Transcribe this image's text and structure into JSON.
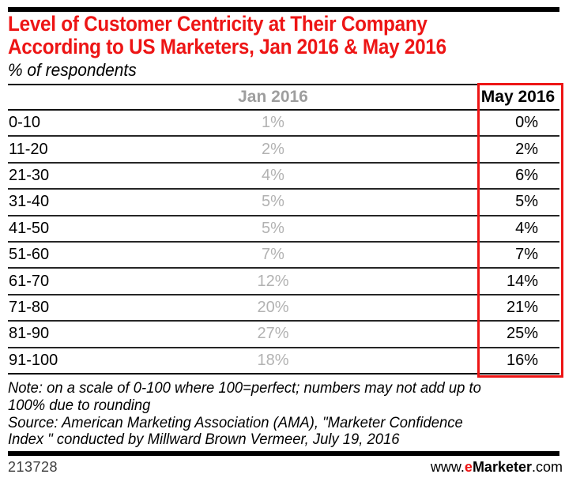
{
  "page": {
    "title_lines": [
      "Level of Customer Centricity at Their Company",
      "According to US Marketers, Jan 2016 & May 2016"
    ],
    "subtitle": "% of respondents"
  },
  "chart_data": {
    "type": "table",
    "title": "Level of Customer Centricity at Their Company According to US Marketers, Jan 2016 & May 2016",
    "subtitle": "% of respondents",
    "categories": [
      "0-10",
      "11-20",
      "21-30",
      "31-40",
      "41-50",
      "51-60",
      "61-70",
      "71-80",
      "81-90",
      "91-100"
    ],
    "series": [
      {
        "name": "Jan 2016",
        "values": [
          "1%",
          "2%",
          "4%",
          "5%",
          "5%",
          "7%",
          "12%",
          "20%",
          "27%",
          "18%"
        ]
      },
      {
        "name": "May 2016",
        "values": [
          "0%",
          "2%",
          "6%",
          "5%",
          "4%",
          "7%",
          "14%",
          "21%",
          "25%",
          "16%"
        ]
      }
    ],
    "highlighted_column": "May 2016"
  },
  "footnote": {
    "note_lines": [
      "Note: on a scale of 0-100 where 100=perfect; numbers may not add up to",
      "100% due to rounding"
    ],
    "source_lines": [
      "Source: American Marketing Association (AMA), \"Marketer Confidence",
      "Index \" conducted by Millward Brown Vermeer, July 19, 2016"
    ]
  },
  "footer": {
    "chart_id": "213728",
    "url_prefix": "www.",
    "brand_e": "e",
    "brand_rest": "Marketer",
    "url_suffix": ".com"
  },
  "colors": {
    "accent_red": "#ed1515",
    "header_gray": "#9e9e9e",
    "value_gray": "#b2b2b2"
  }
}
